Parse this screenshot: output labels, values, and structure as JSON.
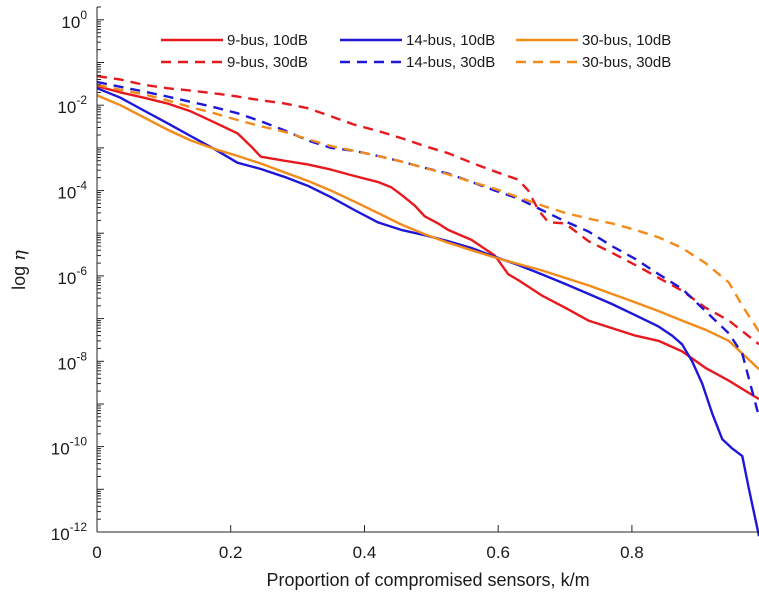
{
  "chart_data": {
    "type": "line",
    "title": "",
    "xlabel": "Proportion of compromised sensors, k/m",
    "ylabel": {
      "prefix": "log ",
      "symbol": "η"
    },
    "xlim": [
      0,
      0.99
    ],
    "ylim": [
      1e-12,
      2
    ],
    "yscale": "log",
    "grid": false,
    "legend_position": "top",
    "x_ticks": [
      {
        "value": 0,
        "label": "0"
      },
      {
        "value": 0.2,
        "label": "0.2"
      },
      {
        "value": 0.4,
        "label": "0.4"
      },
      {
        "value": 0.6,
        "label": "0.6"
      },
      {
        "value": 0.8,
        "label": "0.8"
      }
    ],
    "y_ticks": [
      {
        "value": 1.0,
        "base": "10",
        "exp": "0"
      },
      {
        "value": 0.01,
        "base": "10",
        "exp": "-2"
      },
      {
        "value": 0.0001,
        "base": "10",
        "exp": "-4"
      },
      {
        "value": 1e-06,
        "base": "10",
        "exp": "-6"
      },
      {
        "value": 1e-08,
        "base": "10",
        "exp": "-8"
      },
      {
        "value": 1e-10,
        "base": "10",
        "exp": "-10"
      },
      {
        "value": 1e-12,
        "base": "10",
        "exp": "-12"
      }
    ],
    "series": [
      {
        "name": "9-bus, 10dB",
        "color": "#e8191e",
        "dash": "solid",
        "points": [
          [
            0,
            0.028
          ],
          [
            0.035,
            0.02
          ],
          [
            0.07,
            0.015
          ],
          [
            0.105,
            0.011
          ],
          [
            0.14,
            0.0072
          ],
          [
            0.175,
            0.004
          ],
          [
            0.21,
            0.0022
          ],
          [
            0.23,
            0.0011
          ],
          [
            0.245,
            0.00062
          ],
          [
            0.28,
            0.0005
          ],
          [
            0.315,
            0.00041
          ],
          [
            0.35,
            0.00031
          ],
          [
            0.385,
            0.00022
          ],
          [
            0.42,
            0.00016
          ],
          [
            0.44,
            0.00012
          ],
          [
            0.455,
            8e-05
          ],
          [
            0.475,
            4.5e-05
          ],
          [
            0.49,
            2.5e-05
          ],
          [
            0.51,
            1.7e-05
          ],
          [
            0.525,
            1.2e-05
          ],
          [
            0.56,
            7e-06
          ],
          [
            0.595,
            3e-06
          ],
          [
            0.615,
            1.1e-06
          ],
          [
            0.63,
            8e-07
          ],
          [
            0.665,
            3.5e-07
          ],
          [
            0.7,
            1.8e-07
          ],
          [
            0.735,
            9e-08
          ],
          [
            0.77,
            6e-08
          ],
          [
            0.805,
            4e-08
          ],
          [
            0.84,
            3e-08
          ],
          [
            0.875,
            1.7e-08
          ],
          [
            0.91,
            7e-09
          ],
          [
            0.945,
            3.5e-09
          ],
          [
            0.99,
            1.3e-09
          ]
        ]
      },
      {
        "name": "14-bus, 10dB",
        "color": "#1f17d8",
        "dash": "solid",
        "points": [
          [
            0,
            0.025
          ],
          [
            0.035,
            0.015
          ],
          [
            0.07,
            0.0075
          ],
          [
            0.105,
            0.0038
          ],
          [
            0.14,
            0.0019
          ],
          [
            0.175,
            0.00095
          ],
          [
            0.21,
            0.00045
          ],
          [
            0.245,
            0.00032
          ],
          [
            0.28,
            0.00021
          ],
          [
            0.315,
            0.00013
          ],
          [
            0.35,
            7e-05
          ],
          [
            0.385,
            3.5e-05
          ],
          [
            0.42,
            1.8e-05
          ],
          [
            0.455,
            1.2e-05
          ],
          [
            0.49,
            9e-06
          ],
          [
            0.525,
            6.5e-06
          ],
          [
            0.56,
            4.5e-06
          ],
          [
            0.595,
            2.8e-06
          ],
          [
            0.63,
            1.8e-06
          ],
          [
            0.665,
            1.1e-06
          ],
          [
            0.7,
            6.5e-07
          ],
          [
            0.735,
            3.8e-07
          ],
          [
            0.77,
            2.2e-07
          ],
          [
            0.805,
            1.2e-07
          ],
          [
            0.84,
            6.5e-08
          ],
          [
            0.86,
            4e-08
          ],
          [
            0.875,
            2.5e-08
          ],
          [
            0.89,
            1e-08
          ],
          [
            0.905,
            3e-09
          ],
          [
            0.92,
            6e-10
          ],
          [
            0.935,
            1.5e-10
          ],
          [
            0.95,
            9e-11
          ],
          [
            0.965,
            6e-11
          ],
          [
            0.975,
            1e-11
          ],
          [
            0.99,
            8e-13
          ]
        ]
      },
      {
        "name": "30-bus, 10dB",
        "color": "#f38b1b",
        "dash": "solid",
        "points": [
          [
            0,
            0.017
          ],
          [
            0.035,
            0.01
          ],
          [
            0.07,
            0.0052
          ],
          [
            0.105,
            0.0027
          ],
          [
            0.14,
            0.0015
          ],
          [
            0.175,
            0.00095
          ],
          [
            0.21,
            0.00065
          ],
          [
            0.245,
            0.00043
          ],
          [
            0.28,
            0.00027
          ],
          [
            0.315,
            0.00017
          ],
          [
            0.35,
            0.0001
          ],
          [
            0.385,
            5.5e-05
          ],
          [
            0.42,
            3e-05
          ],
          [
            0.455,
            1.6e-05
          ],
          [
            0.49,
            9.5e-06
          ],
          [
            0.525,
            6e-06
          ],
          [
            0.56,
            4e-06
          ],
          [
            0.595,
            2.7e-06
          ],
          [
            0.63,
            1.9e-06
          ],
          [
            0.665,
            1.35e-06
          ],
          [
            0.7,
            9e-07
          ],
          [
            0.735,
            6e-07
          ],
          [
            0.77,
            3.8e-07
          ],
          [
            0.805,
            2.4e-07
          ],
          [
            0.84,
            1.5e-07
          ],
          [
            0.875,
            9e-08
          ],
          [
            0.91,
            5.5e-08
          ],
          [
            0.945,
            3e-08
          ],
          [
            0.99,
            6.5e-09
          ]
        ]
      },
      {
        "name": "9-bus, 30dB",
        "color": "#e8191e",
        "dash": "dashed",
        "points": [
          [
            0,
            0.048
          ],
          [
            0.035,
            0.04
          ],
          [
            0.07,
            0.03
          ],
          [
            0.105,
            0.025
          ],
          [
            0.14,
            0.022
          ],
          [
            0.175,
            0.019
          ],
          [
            0.21,
            0.016
          ],
          [
            0.245,
            0.013
          ],
          [
            0.28,
            0.011
          ],
          [
            0.315,
            0.0085
          ],
          [
            0.35,
            0.0055
          ],
          [
            0.385,
            0.0035
          ],
          [
            0.42,
            0.0025
          ],
          [
            0.455,
            0.0017
          ],
          [
            0.49,
            0.0011
          ],
          [
            0.525,
            0.00075
          ],
          [
            0.56,
            0.00045
          ],
          [
            0.595,
            0.00028
          ],
          [
            0.63,
            0.00018
          ],
          [
            0.645,
            0.0001
          ],
          [
            0.66,
            3.5e-05
          ],
          [
            0.675,
            1.8e-05
          ],
          [
            0.7,
            1.7e-05
          ],
          [
            0.735,
            6.5e-06
          ],
          [
            0.77,
            3.5e-06
          ],
          [
            0.805,
            1.8e-06
          ],
          [
            0.84,
            9e-07
          ],
          [
            0.875,
            4.5e-07
          ],
          [
            0.91,
            1.8e-07
          ],
          [
            0.945,
            9e-08
          ],
          [
            0.99,
            2.5e-08
          ]
        ]
      },
      {
        "name": "14-bus, 30dB",
        "color": "#1f17d8",
        "dash": "dashed",
        "points": [
          [
            0,
            0.035
          ],
          [
            0.035,
            0.027
          ],
          [
            0.07,
            0.021
          ],
          [
            0.105,
            0.016
          ],
          [
            0.14,
            0.012
          ],
          [
            0.175,
            0.009
          ],
          [
            0.21,
            0.0065
          ],
          [
            0.245,
            0.0042
          ],
          [
            0.28,
            0.0026
          ],
          [
            0.315,
            0.0015
          ],
          [
            0.35,
            0.001
          ],
          [
            0.385,
            0.00085
          ],
          [
            0.42,
            0.00065
          ],
          [
            0.455,
            0.00048
          ],
          [
            0.49,
            0.00034
          ],
          [
            0.525,
            0.00025
          ],
          [
            0.56,
            0.00016
          ],
          [
            0.595,
            0.0001
          ],
          [
            0.63,
            6.5e-05
          ],
          [
            0.665,
            3.5e-05
          ],
          [
            0.7,
            1.9e-05
          ],
          [
            0.735,
            1.1e-05
          ],
          [
            0.77,
            5e-06
          ],
          [
            0.805,
            2.5e-06
          ],
          [
            0.84,
            1.1e-06
          ],
          [
            0.875,
            5e-07
          ],
          [
            0.91,
            1.5e-07
          ],
          [
            0.945,
            4.5e-08
          ],
          [
            0.965,
            1.5e-08
          ],
          [
            0.99,
            5e-10
          ]
        ]
      },
      {
        "name": "30-bus, 30dB",
        "color": "#f38b1b",
        "dash": "dashed",
        "points": [
          [
            0,
            0.03
          ],
          [
            0.035,
            0.023
          ],
          [
            0.07,
            0.018
          ],
          [
            0.105,
            0.013
          ],
          [
            0.14,
            0.009
          ],
          [
            0.175,
            0.0065
          ],
          [
            0.21,
            0.0045
          ],
          [
            0.245,
            0.0032
          ],
          [
            0.28,
            0.0024
          ],
          [
            0.315,
            0.0016
          ],
          [
            0.35,
            0.0011
          ],
          [
            0.385,
            0.00085
          ],
          [
            0.42,
            0.00065
          ],
          [
            0.455,
            0.00048
          ],
          [
            0.49,
            0.00034
          ],
          [
            0.525,
            0.00024
          ],
          [
            0.56,
            0.00016
          ],
          [
            0.595,
            0.00011
          ],
          [
            0.63,
            7e-05
          ],
          [
            0.665,
            4.5e-05
          ],
          [
            0.7,
            3e-05
          ],
          [
            0.735,
            2.2e-05
          ],
          [
            0.77,
            1.7e-05
          ],
          [
            0.805,
            1.2e-05
          ],
          [
            0.84,
            8e-06
          ],
          [
            0.875,
            4.5e-06
          ],
          [
            0.91,
            2e-06
          ],
          [
            0.945,
            7e-07
          ],
          [
            0.965,
            2e-07
          ],
          [
            0.99,
            5e-08
          ]
        ]
      }
    ]
  }
}
